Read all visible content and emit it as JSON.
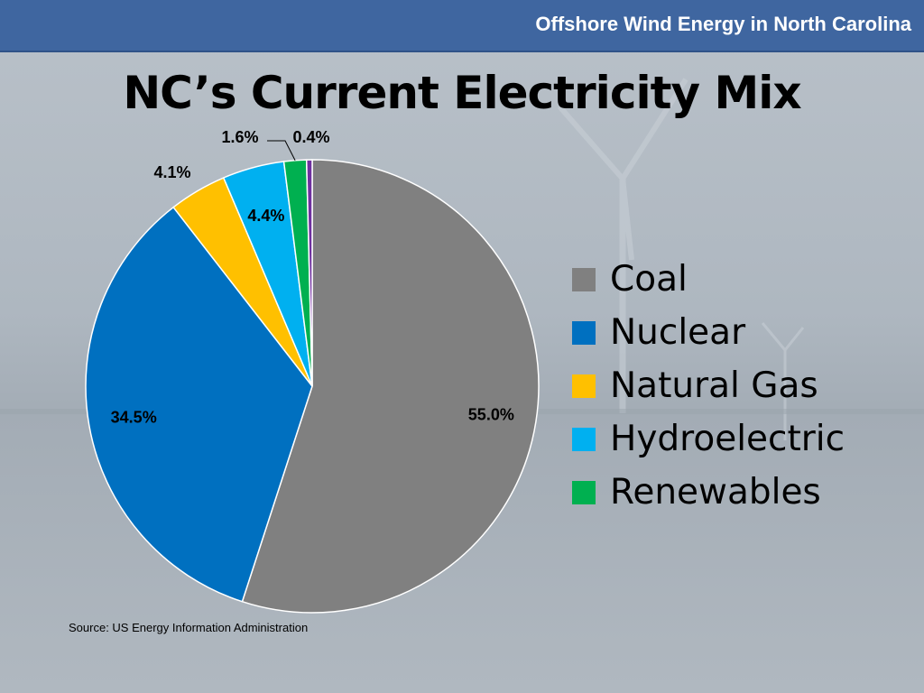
{
  "header": {
    "text": "Offshore Wind Energy in North Carolina"
  },
  "slide": {
    "title": "NC’s Current Electricity Mix"
  },
  "source": {
    "text": "Source: US Energy Information Administration"
  },
  "chart_data": {
    "type": "pie",
    "title": "",
    "start": "12 o'clock",
    "direction": "clockwise",
    "legend_position": "right",
    "slices": [
      {
        "name": "Coal",
        "value": 55.0,
        "label": "55.0%",
        "color": "#808080"
      },
      {
        "name": "Nuclear",
        "value": 34.5,
        "label": "34.5%",
        "color": "#0070c0"
      },
      {
        "name": "Natural Gas",
        "value": 4.1,
        "label": "4.1%",
        "color": "#ffc000"
      },
      {
        "name": "Hydroelectric",
        "value": 4.4,
        "label": "4.4%",
        "color": "#00b0f0"
      },
      {
        "name": "Renewables",
        "value": 1.6,
        "label": "1.6%",
        "color": "#00b050"
      },
      {
        "name": "",
        "value": 0.4,
        "label": "0.4%",
        "color": "#7030a0"
      }
    ],
    "legend": [
      "Coal",
      "Nuclear",
      "Natural Gas",
      "Hydroelectric",
      "Renewables"
    ]
  }
}
